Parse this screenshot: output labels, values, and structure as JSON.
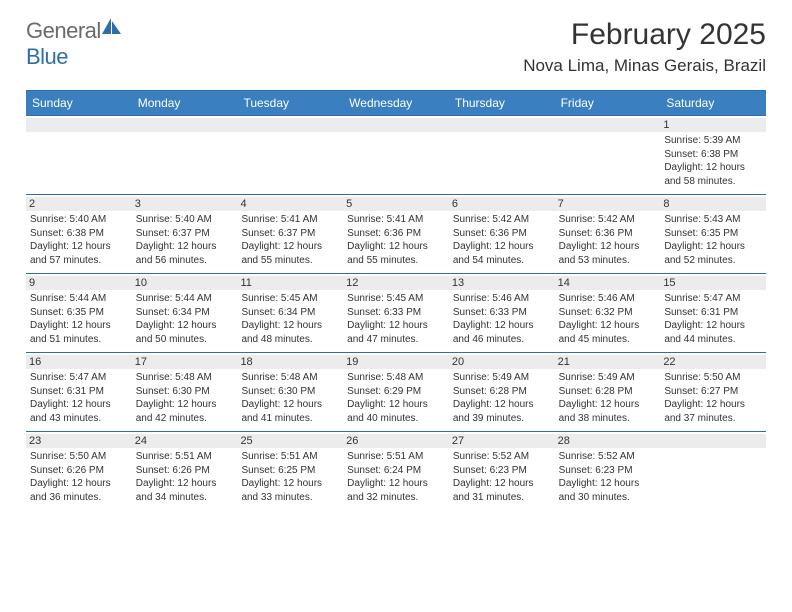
{
  "brand": {
    "general": "General",
    "blue": "Blue"
  },
  "title": "February 2025",
  "location": "Nova Lima, Minas Gerais, Brazil",
  "colors": {
    "header_bg": "#3a80c0",
    "border": "#2f6fa8",
    "daynum_bg": "#ececec",
    "text": "#333333",
    "logo_gray": "#6b6b6b",
    "logo_blue": "#2f6fa8"
  },
  "dayNames": [
    "Sunday",
    "Monday",
    "Tuesday",
    "Wednesday",
    "Thursday",
    "Friday",
    "Saturday"
  ],
  "weeks": [
    [
      {
        "n": "",
        "l1": "",
        "l2": "",
        "l3": "",
        "l4": ""
      },
      {
        "n": "",
        "l1": "",
        "l2": "",
        "l3": "",
        "l4": ""
      },
      {
        "n": "",
        "l1": "",
        "l2": "",
        "l3": "",
        "l4": ""
      },
      {
        "n": "",
        "l1": "",
        "l2": "",
        "l3": "",
        "l4": ""
      },
      {
        "n": "",
        "l1": "",
        "l2": "",
        "l3": "",
        "l4": ""
      },
      {
        "n": "",
        "l1": "",
        "l2": "",
        "l3": "",
        "l4": ""
      },
      {
        "n": "1",
        "l1": "Sunrise: 5:39 AM",
        "l2": "Sunset: 6:38 PM",
        "l3": "Daylight: 12 hours",
        "l4": "and 58 minutes."
      }
    ],
    [
      {
        "n": "2",
        "l1": "Sunrise: 5:40 AM",
        "l2": "Sunset: 6:38 PM",
        "l3": "Daylight: 12 hours",
        "l4": "and 57 minutes."
      },
      {
        "n": "3",
        "l1": "Sunrise: 5:40 AM",
        "l2": "Sunset: 6:37 PM",
        "l3": "Daylight: 12 hours",
        "l4": "and 56 minutes."
      },
      {
        "n": "4",
        "l1": "Sunrise: 5:41 AM",
        "l2": "Sunset: 6:37 PM",
        "l3": "Daylight: 12 hours",
        "l4": "and 55 minutes."
      },
      {
        "n": "5",
        "l1": "Sunrise: 5:41 AM",
        "l2": "Sunset: 6:36 PM",
        "l3": "Daylight: 12 hours",
        "l4": "and 55 minutes."
      },
      {
        "n": "6",
        "l1": "Sunrise: 5:42 AM",
        "l2": "Sunset: 6:36 PM",
        "l3": "Daylight: 12 hours",
        "l4": "and 54 minutes."
      },
      {
        "n": "7",
        "l1": "Sunrise: 5:42 AM",
        "l2": "Sunset: 6:36 PM",
        "l3": "Daylight: 12 hours",
        "l4": "and 53 minutes."
      },
      {
        "n": "8",
        "l1": "Sunrise: 5:43 AM",
        "l2": "Sunset: 6:35 PM",
        "l3": "Daylight: 12 hours",
        "l4": "and 52 minutes."
      }
    ],
    [
      {
        "n": "9",
        "l1": "Sunrise: 5:44 AM",
        "l2": "Sunset: 6:35 PM",
        "l3": "Daylight: 12 hours",
        "l4": "and 51 minutes."
      },
      {
        "n": "10",
        "l1": "Sunrise: 5:44 AM",
        "l2": "Sunset: 6:34 PM",
        "l3": "Daylight: 12 hours",
        "l4": "and 50 minutes."
      },
      {
        "n": "11",
        "l1": "Sunrise: 5:45 AM",
        "l2": "Sunset: 6:34 PM",
        "l3": "Daylight: 12 hours",
        "l4": "and 48 minutes."
      },
      {
        "n": "12",
        "l1": "Sunrise: 5:45 AM",
        "l2": "Sunset: 6:33 PM",
        "l3": "Daylight: 12 hours",
        "l4": "and 47 minutes."
      },
      {
        "n": "13",
        "l1": "Sunrise: 5:46 AM",
        "l2": "Sunset: 6:33 PM",
        "l3": "Daylight: 12 hours",
        "l4": "and 46 minutes."
      },
      {
        "n": "14",
        "l1": "Sunrise: 5:46 AM",
        "l2": "Sunset: 6:32 PM",
        "l3": "Daylight: 12 hours",
        "l4": "and 45 minutes."
      },
      {
        "n": "15",
        "l1": "Sunrise: 5:47 AM",
        "l2": "Sunset: 6:31 PM",
        "l3": "Daylight: 12 hours",
        "l4": "and 44 minutes."
      }
    ],
    [
      {
        "n": "16",
        "l1": "Sunrise: 5:47 AM",
        "l2": "Sunset: 6:31 PM",
        "l3": "Daylight: 12 hours",
        "l4": "and 43 minutes."
      },
      {
        "n": "17",
        "l1": "Sunrise: 5:48 AM",
        "l2": "Sunset: 6:30 PM",
        "l3": "Daylight: 12 hours",
        "l4": "and 42 minutes."
      },
      {
        "n": "18",
        "l1": "Sunrise: 5:48 AM",
        "l2": "Sunset: 6:30 PM",
        "l3": "Daylight: 12 hours",
        "l4": "and 41 minutes."
      },
      {
        "n": "19",
        "l1": "Sunrise: 5:48 AM",
        "l2": "Sunset: 6:29 PM",
        "l3": "Daylight: 12 hours",
        "l4": "and 40 minutes."
      },
      {
        "n": "20",
        "l1": "Sunrise: 5:49 AM",
        "l2": "Sunset: 6:28 PM",
        "l3": "Daylight: 12 hours",
        "l4": "and 39 minutes."
      },
      {
        "n": "21",
        "l1": "Sunrise: 5:49 AM",
        "l2": "Sunset: 6:28 PM",
        "l3": "Daylight: 12 hours",
        "l4": "and 38 minutes."
      },
      {
        "n": "22",
        "l1": "Sunrise: 5:50 AM",
        "l2": "Sunset: 6:27 PM",
        "l3": "Daylight: 12 hours",
        "l4": "and 37 minutes."
      }
    ],
    [
      {
        "n": "23",
        "l1": "Sunrise: 5:50 AM",
        "l2": "Sunset: 6:26 PM",
        "l3": "Daylight: 12 hours",
        "l4": "and 36 minutes."
      },
      {
        "n": "24",
        "l1": "Sunrise: 5:51 AM",
        "l2": "Sunset: 6:26 PM",
        "l3": "Daylight: 12 hours",
        "l4": "and 34 minutes."
      },
      {
        "n": "25",
        "l1": "Sunrise: 5:51 AM",
        "l2": "Sunset: 6:25 PM",
        "l3": "Daylight: 12 hours",
        "l4": "and 33 minutes."
      },
      {
        "n": "26",
        "l1": "Sunrise: 5:51 AM",
        "l2": "Sunset: 6:24 PM",
        "l3": "Daylight: 12 hours",
        "l4": "and 32 minutes."
      },
      {
        "n": "27",
        "l1": "Sunrise: 5:52 AM",
        "l2": "Sunset: 6:23 PM",
        "l3": "Daylight: 12 hours",
        "l4": "and 31 minutes."
      },
      {
        "n": "28",
        "l1": "Sunrise: 5:52 AM",
        "l2": "Sunset: 6:23 PM",
        "l3": "Daylight: 12 hours",
        "l4": "and 30 minutes."
      },
      {
        "n": "",
        "l1": "",
        "l2": "",
        "l3": "",
        "l4": ""
      }
    ]
  ]
}
